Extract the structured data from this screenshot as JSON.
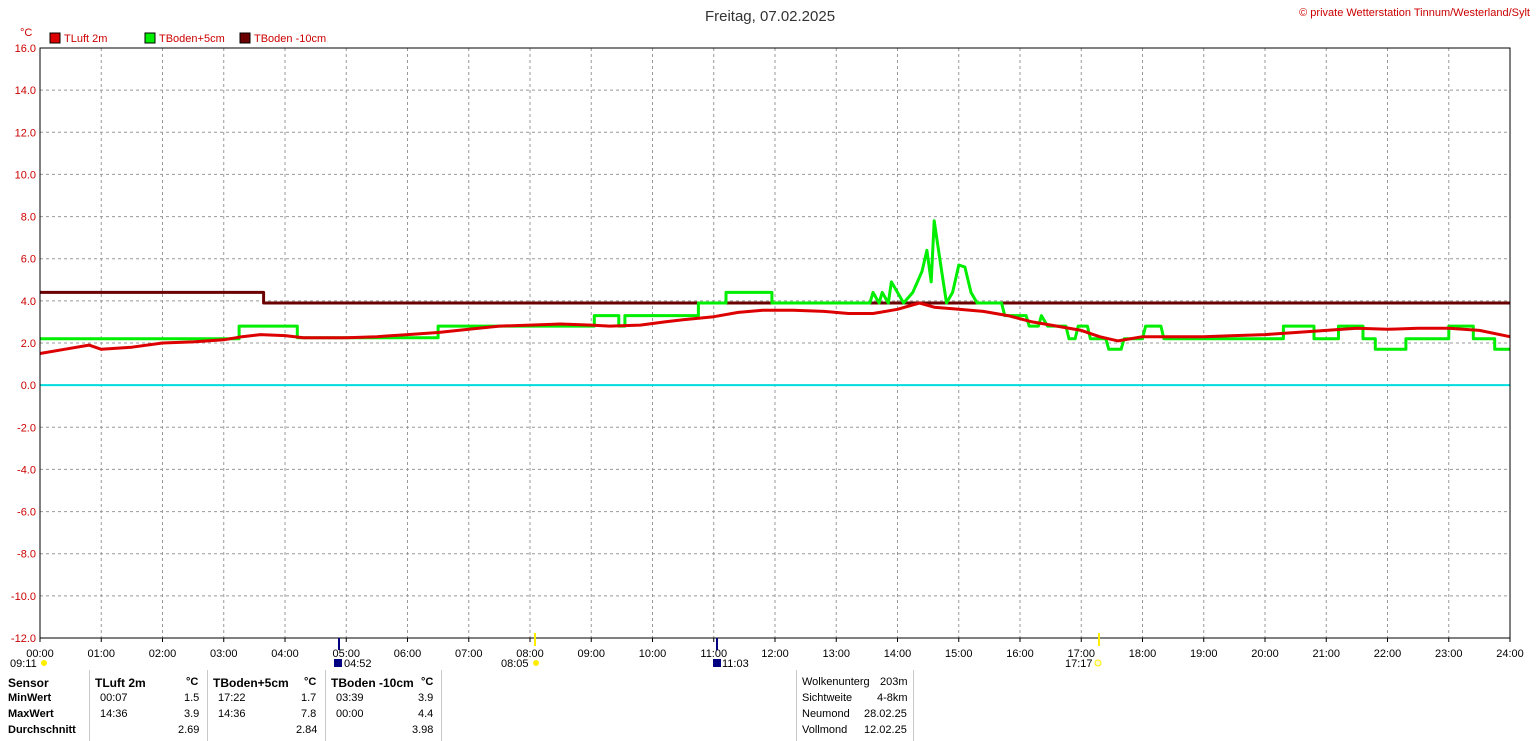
{
  "title": "Freitag, 07.02.2025",
  "copyright": "© private Wetterstation Tinnum/Westerland/Sylt",
  "colors": {
    "tluft": "#dd0000",
    "tboden5": "#00ee00",
    "tboden10": "#6b0000",
    "zero": "#00dddd",
    "axis_text": "#cc0000",
    "grid": "#999999",
    "sun": "#ffee00"
  },
  "chart_data": {
    "type": "line",
    "ylabel": "°C",
    "ylim": [
      -12,
      16
    ],
    "y_ticks": [
      "16.0",
      "14.0",
      "12.0",
      "10.0",
      "8.0",
      "6.0",
      "4.0",
      "2.0",
      "0.0",
      "-2.0",
      "-4.0",
      "-6.0",
      "-8.0",
      "-10.0",
      "-12.0"
    ],
    "xlim": [
      0,
      24
    ],
    "x_ticks": [
      "00:00",
      "01:00",
      "02:00",
      "03:00",
      "04:00",
      "05:00",
      "06:00",
      "07:00",
      "08:00",
      "09:00",
      "10:00",
      "11:00",
      "12:00",
      "13:00",
      "14:00",
      "15:00",
      "16:00",
      "17:00",
      "18:00",
      "19:00",
      "20:00",
      "21:00",
      "22:00",
      "23:00",
      "24:00"
    ],
    "grid": true,
    "legend_placement": "top-left",
    "series": [
      {
        "name": "TLuft 2m",
        "color": "#dd0000",
        "points": [
          [
            0,
            1.5
          ],
          [
            0.4,
            1.7
          ],
          [
            0.8,
            1.9
          ],
          [
            1.0,
            1.7
          ],
          [
            1.5,
            1.8
          ],
          [
            2.0,
            2.0
          ],
          [
            2.5,
            2.05
          ],
          [
            3.0,
            2.15
          ],
          [
            3.3,
            2.3
          ],
          [
            3.6,
            2.4
          ],
          [
            4.0,
            2.35
          ],
          [
            4.3,
            2.25
          ],
          [
            5.0,
            2.25
          ],
          [
            5.5,
            2.3
          ],
          [
            6.0,
            2.4
          ],
          [
            6.5,
            2.5
          ],
          [
            7.0,
            2.65
          ],
          [
            7.5,
            2.8
          ],
          [
            8.0,
            2.85
          ],
          [
            8.5,
            2.9
          ],
          [
            9.0,
            2.85
          ],
          [
            9.3,
            2.8
          ],
          [
            9.8,
            2.85
          ],
          [
            10.2,
            3.0
          ],
          [
            10.5,
            3.1
          ],
          [
            11.0,
            3.25
          ],
          [
            11.4,
            3.45
          ],
          [
            11.8,
            3.55
          ],
          [
            12.3,
            3.55
          ],
          [
            12.8,
            3.5
          ],
          [
            13.2,
            3.4
          ],
          [
            13.6,
            3.4
          ],
          [
            14.0,
            3.6
          ],
          [
            14.36,
            3.9
          ],
          [
            14.6,
            3.7
          ],
          [
            15.0,
            3.6
          ],
          [
            15.4,
            3.5
          ],
          [
            15.8,
            3.3
          ],
          [
            16.2,
            3.0
          ],
          [
            16.6,
            2.8
          ],
          [
            17.0,
            2.6
          ],
          [
            17.3,
            2.3
          ],
          [
            17.6,
            2.1
          ],
          [
            18.0,
            2.3
          ],
          [
            18.5,
            2.3
          ],
          [
            19.0,
            2.3
          ],
          [
            19.5,
            2.35
          ],
          [
            20.0,
            2.4
          ],
          [
            20.5,
            2.5
          ],
          [
            21.0,
            2.6
          ],
          [
            21.5,
            2.7
          ],
          [
            22.0,
            2.65
          ],
          [
            22.5,
            2.7
          ],
          [
            23.0,
            2.7
          ],
          [
            23.5,
            2.6
          ],
          [
            24.0,
            2.3
          ]
        ]
      },
      {
        "name": "TBoden+5cm",
        "color": "#00ee00",
        "points": [
          [
            0,
            2.2
          ],
          [
            3.25,
            2.2
          ],
          [
            3.25,
            2.8
          ],
          [
            4.2,
            2.8
          ],
          [
            4.2,
            2.25
          ],
          [
            6.5,
            2.25
          ],
          [
            6.5,
            2.8
          ],
          [
            9.05,
            2.8
          ],
          [
            9.05,
            3.3
          ],
          [
            9.45,
            3.3
          ],
          [
            9.45,
            2.8
          ],
          [
            9.55,
            2.8
          ],
          [
            9.55,
            3.3
          ],
          [
            10.75,
            3.3
          ],
          [
            10.75,
            3.9
          ],
          [
            11.2,
            3.9
          ],
          [
            11.2,
            4.4
          ],
          [
            11.95,
            4.4
          ],
          [
            11.95,
            3.9
          ],
          [
            13.55,
            3.9
          ],
          [
            13.6,
            4.4
          ],
          [
            13.7,
            3.9
          ],
          [
            13.75,
            4.4
          ],
          [
            13.85,
            3.9
          ],
          [
            13.9,
            4.9
          ],
          [
            14.0,
            4.4
          ],
          [
            14.1,
            3.9
          ],
          [
            14.25,
            4.4
          ],
          [
            14.4,
            5.4
          ],
          [
            14.48,
            6.4
          ],
          [
            14.55,
            4.9
          ],
          [
            14.6,
            7.8
          ],
          [
            14.7,
            5.8
          ],
          [
            14.8,
            3.9
          ],
          [
            14.9,
            4.4
          ],
          [
            15.0,
            5.7
          ],
          [
            15.1,
            5.6
          ],
          [
            15.2,
            4.4
          ],
          [
            15.3,
            3.9
          ],
          [
            15.7,
            3.9
          ],
          [
            15.75,
            3.3
          ],
          [
            16.1,
            3.3
          ],
          [
            16.15,
            2.8
          ],
          [
            16.3,
            2.8
          ],
          [
            16.35,
            3.3
          ],
          [
            16.45,
            2.8
          ],
          [
            16.75,
            2.8
          ],
          [
            16.8,
            2.2
          ],
          [
            16.9,
            2.2
          ],
          [
            16.95,
            2.8
          ],
          [
            17.1,
            2.8
          ],
          [
            17.15,
            2.2
          ],
          [
            17.4,
            2.2
          ],
          [
            17.45,
            1.7
          ],
          [
            17.65,
            1.7
          ],
          [
            17.7,
            2.2
          ],
          [
            18.0,
            2.2
          ],
          [
            18.05,
            2.8
          ],
          [
            18.3,
            2.8
          ],
          [
            18.35,
            2.2
          ],
          [
            20.3,
            2.2
          ],
          [
            20.3,
            2.8
          ],
          [
            20.8,
            2.8
          ],
          [
            20.8,
            2.2
          ],
          [
            21.2,
            2.2
          ],
          [
            21.2,
            2.8
          ],
          [
            21.6,
            2.8
          ],
          [
            21.6,
            2.2
          ],
          [
            21.8,
            2.2
          ],
          [
            21.8,
            1.7
          ],
          [
            22.3,
            1.7
          ],
          [
            22.3,
            2.2
          ],
          [
            23.0,
            2.2
          ],
          [
            23.0,
            2.8
          ],
          [
            23.4,
            2.8
          ],
          [
            23.4,
            2.2
          ],
          [
            23.75,
            2.2
          ],
          [
            23.75,
            1.7
          ],
          [
            24.0,
            1.7
          ]
        ]
      },
      {
        "name": "TBoden -10cm",
        "color": "#6b0000",
        "points": [
          [
            0,
            4.4
          ],
          [
            3.65,
            4.4
          ],
          [
            3.65,
            3.9
          ],
          [
            24.0,
            3.9
          ]
        ]
      }
    ],
    "reference_line": {
      "y": 0,
      "color": "#00dddd"
    }
  },
  "sun_moon": {
    "sunrise": "08:05",
    "sunset": "17:17",
    "moonrise": "11:03",
    "moonset": "04:52",
    "left_time": "09:11"
  },
  "stats": {
    "sensor_label": "Sensor",
    "row_labels": [
      "MinWert",
      "MaxWert",
      "Durchschnitt"
    ],
    "columns": [
      {
        "name": "TLuft 2m",
        "unit": "°C",
        "min_time": "00:07",
        "min": "1.5",
        "max_time": "14:36",
        "max": "3.9",
        "avg": "2.69"
      },
      {
        "name": "TBoden+5cm",
        "unit": "°C",
        "min_time": "17:22",
        "min": "1.7",
        "max_time": "14:36",
        "max": "7.8",
        "avg": "2.84"
      },
      {
        "name": "TBoden -10cm",
        "unit": "°C",
        "min_time": "03:39",
        "min": "3.9",
        "max_time": "00:00",
        "max": "4.4",
        "avg": "3.98"
      }
    ]
  },
  "weather": [
    {
      "label": "Wolkenunterg",
      "value": "203m"
    },
    {
      "label": "Sichtweite",
      "value": "4-8km"
    },
    {
      "label": "Neumond",
      "value": "28.02.25"
    },
    {
      "label": "Vollmond",
      "value": "12.02.25"
    }
  ]
}
